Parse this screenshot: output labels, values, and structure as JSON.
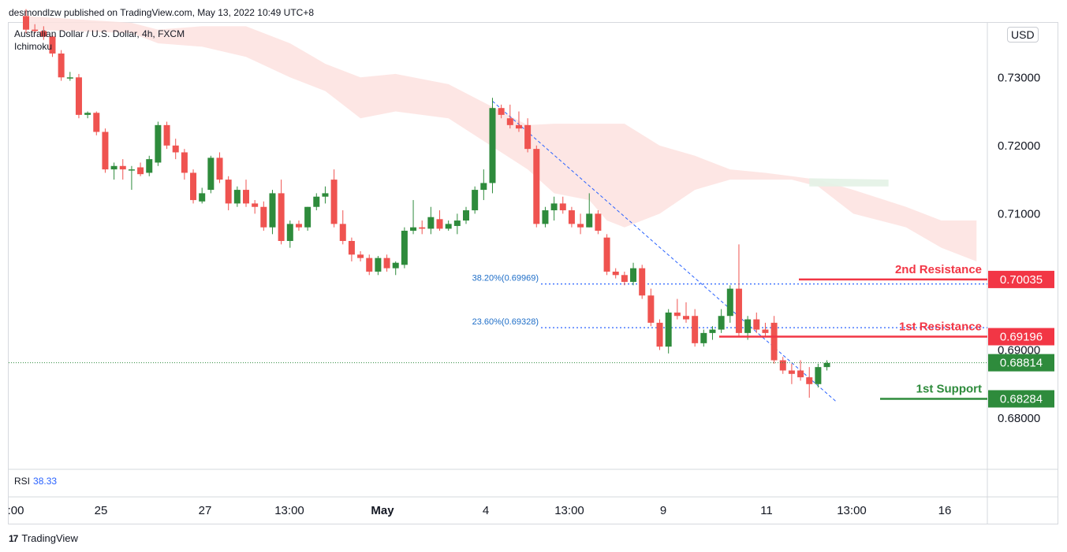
{
  "publisher": "desmondlzw published on TradingView.com, May 13, 2022 10:49 UTC+8",
  "symbol_title": "Australian Dollar / U.S. Dollar, 4h, FXCM",
  "indicator": "Ichimoku",
  "currency_button": "USD",
  "rsi": {
    "label": "RSI",
    "value": "38.33"
  },
  "brand": {
    "name": "TradingView",
    "logo_glyph": "17"
  },
  "colors": {
    "up": "#2e8b3c",
    "down": "#ef5350",
    "resistance": "#f23645",
    "support": "#2e8b3c",
    "fib": "#2962ff",
    "cloud_red": "#fde2df",
    "cloud_green": "#e3f2e5"
  },
  "chart_data": {
    "type": "candlestick",
    "symbol": "AUDUSD",
    "timeframe": "4h",
    "y_axis": {
      "ticks": [
        "0.73000",
        "0.72000",
        "0.71000",
        "0.69000",
        "0.68000"
      ],
      "range": [
        0.6725,
        0.738
      ]
    },
    "x_axis": {
      "ticks": [
        ":00",
        "25",
        "27",
        "13:00",
        "May",
        "4",
        "13:00",
        "9",
        "11",
        "13:00",
        "16"
      ]
    },
    "candles": [
      [
        0.739,
        0.74,
        0.7365,
        0.737
      ],
      [
        0.737,
        0.7378,
        0.7365,
        0.7368
      ],
      [
        0.7368,
        0.7375,
        0.7355,
        0.736
      ],
      [
        0.736,
        0.7362,
        0.733,
        0.7335
      ],
      [
        0.7335,
        0.734,
        0.7295,
        0.73
      ],
      [
        0.73,
        0.7308,
        0.7295,
        0.73
      ],
      [
        0.73,
        0.7305,
        0.724,
        0.7245
      ],
      [
        0.7245,
        0.725,
        0.724,
        0.7248
      ],
      [
        0.7248,
        0.725,
        0.7215,
        0.722
      ],
      [
        0.722,
        0.7225,
        0.716,
        0.7165
      ],
      [
        0.7165,
        0.7175,
        0.715,
        0.717
      ],
      [
        0.717,
        0.718,
        0.715,
        0.7165
      ],
      [
        0.7165,
        0.717,
        0.7135,
        0.7165
      ],
      [
        0.7168,
        0.7175,
        0.7155,
        0.7158
      ],
      [
        0.716,
        0.7185,
        0.7155,
        0.718
      ],
      [
        0.7175,
        0.7235,
        0.717,
        0.723
      ],
      [
        0.723,
        0.7235,
        0.7195,
        0.72
      ],
      [
        0.72,
        0.721,
        0.718,
        0.719
      ],
      [
        0.719,
        0.7195,
        0.715,
        0.716
      ],
      [
        0.716,
        0.7165,
        0.7115,
        0.712
      ],
      [
        0.7118,
        0.7138,
        0.7115,
        0.713
      ],
      [
        0.7135,
        0.7185,
        0.713,
        0.7182
      ],
      [
        0.7182,
        0.719,
        0.7145,
        0.715
      ],
      [
        0.715,
        0.7155,
        0.7105,
        0.7115
      ],
      [
        0.7115,
        0.714,
        0.711,
        0.7135
      ],
      [
        0.7135,
        0.715,
        0.711,
        0.7115
      ],
      [
        0.7115,
        0.712,
        0.71,
        0.711
      ],
      [
        0.711,
        0.7118,
        0.7075,
        0.708
      ],
      [
        0.708,
        0.7135,
        0.707,
        0.713
      ],
      [
        0.713,
        0.715,
        0.7055,
        0.706
      ],
      [
        0.706,
        0.709,
        0.705,
        0.7085
      ],
      [
        0.7085,
        0.709,
        0.7075,
        0.708
      ],
      [
        0.708,
        0.711,
        0.7075,
        0.711
      ],
      [
        0.711,
        0.713,
        0.7105,
        0.7125
      ],
      [
        0.7125,
        0.714,
        0.7115,
        0.713
      ],
      [
        0.715,
        0.7165,
        0.708,
        0.7085
      ],
      [
        0.7085,
        0.7105,
        0.7055,
        0.706
      ],
      [
        0.706,
        0.7065,
        0.703,
        0.704
      ],
      [
        0.704,
        0.7045,
        0.703,
        0.7035
      ],
      [
        0.7035,
        0.704,
        0.701,
        0.7015
      ],
      [
        0.7015,
        0.7038,
        0.701,
        0.7035
      ],
      [
        0.7035,
        0.704,
        0.7015,
        0.702
      ],
      [
        0.702,
        0.703,
        0.701,
        0.7028
      ],
      [
        0.7025,
        0.708,
        0.702,
        0.7075
      ],
      [
        0.7075,
        0.712,
        0.707,
        0.708
      ],
      [
        0.708,
        0.709,
        0.707,
        0.7078
      ],
      [
        0.7078,
        0.711,
        0.707,
        0.7095
      ],
      [
        0.7092,
        0.7105,
        0.7075,
        0.7078
      ],
      [
        0.7078,
        0.709,
        0.7075,
        0.7085
      ],
      [
        0.7082,
        0.71,
        0.707,
        0.709
      ],
      [
        0.709,
        0.711,
        0.7085,
        0.7105
      ],
      [
        0.7105,
        0.714,
        0.71,
        0.7135
      ],
      [
        0.7135,
        0.7165,
        0.712,
        0.7145
      ],
      [
        0.7145,
        0.727,
        0.713,
        0.7255
      ],
      [
        0.7255,
        0.726,
        0.724,
        0.7245
      ],
      [
        0.724,
        0.726,
        0.7225,
        0.723
      ],
      [
        0.723,
        0.725,
        0.722,
        0.7225
      ],
      [
        0.723,
        0.724,
        0.719,
        0.7195
      ],
      [
        0.7195,
        0.72,
        0.708,
        0.7085
      ],
      [
        0.7085,
        0.711,
        0.708,
        0.7105
      ],
      [
        0.7105,
        0.7125,
        0.709,
        0.7115
      ],
      [
        0.7115,
        0.7125,
        0.71,
        0.7105
      ],
      [
        0.7105,
        0.711,
        0.708,
        0.7085
      ],
      [
        0.7085,
        0.71,
        0.707,
        0.708
      ],
      [
        0.708,
        0.713,
        0.708,
        0.71
      ],
      [
        0.71,
        0.7105,
        0.707,
        0.7075
      ],
      [
        0.7065,
        0.707,
        0.701,
        0.7015
      ],
      [
        0.7015,
        0.702,
        0.7005,
        0.701
      ],
      [
        0.701,
        0.7015,
        0.6995,
        0.7
      ],
      [
        0.7,
        0.7028,
        0.6995,
        0.702
      ],
      [
        0.702,
        0.7025,
        0.6975,
        0.698
      ],
      [
        0.698,
        0.699,
        0.6935,
        0.694
      ],
      [
        0.694,
        0.6945,
        0.69,
        0.6905
      ],
      [
        0.6905,
        0.696,
        0.6895,
        0.6955
      ],
      [
        0.6955,
        0.6975,
        0.6945,
        0.695
      ],
      [
        0.695,
        0.697,
        0.694,
        0.6945
      ],
      [
        0.695,
        0.696,
        0.6905,
        0.691
      ],
      [
        0.691,
        0.693,
        0.6905,
        0.6925
      ],
      [
        0.6925,
        0.6935,
        0.6915,
        0.693
      ],
      [
        0.693,
        0.696,
        0.6925,
        0.695
      ],
      [
        0.695,
        0.6995,
        0.694,
        0.699
      ],
      [
        0.699,
        0.7055,
        0.692,
        0.6925
      ],
      [
        0.6925,
        0.695,
        0.6915,
        0.6945
      ],
      [
        0.6945,
        0.6955,
        0.6925,
        0.693
      ],
      [
        0.693,
        0.694,
        0.692,
        0.6925
      ],
      [
        0.694,
        0.695,
        0.688,
        0.6885
      ],
      [
        0.6885,
        0.689,
        0.6865,
        0.687
      ],
      [
        0.687,
        0.688,
        0.685,
        0.6865
      ],
      [
        0.687,
        0.6885,
        0.6855,
        0.686
      ],
      [
        0.686,
        0.6875,
        0.683,
        0.685
      ],
      [
        0.685,
        0.688,
        0.6845,
        0.6875
      ],
      [
        0.6875,
        0.6885,
        0.687,
        0.6881
      ]
    ],
    "cloud_top": [
      [
        0,
        0.739
      ],
      [
        12,
        0.738
      ],
      [
        15,
        0.737
      ],
      [
        20,
        0.7375
      ],
      [
        25,
        0.7375
      ],
      [
        30,
        0.735
      ],
      [
        34,
        0.732
      ],
      [
        38,
        0.73
      ],
      [
        42,
        0.7305
      ],
      [
        48,
        0.729
      ],
      [
        54,
        0.725
      ],
      [
        57,
        0.723
      ],
      [
        60,
        0.7232
      ],
      [
        68,
        0.7232
      ],
      [
        72,
        0.72
      ],
      [
        76,
        0.7185
      ],
      [
        80,
        0.7165
      ],
      [
        84,
        0.716
      ],
      [
        87,
        0.7155
      ],
      [
        90,
        0.715
      ],
      [
        94,
        0.7135
      ],
      [
        100,
        0.711
      ],
      [
        104,
        0.709
      ],
      [
        108,
        0.709
      ]
    ],
    "cloud_bottom": [
      [
        0,
        0.737
      ],
      [
        12,
        0.7365
      ],
      [
        15,
        0.735
      ],
      [
        20,
        0.7345
      ],
      [
        25,
        0.733
      ],
      [
        30,
        0.73
      ],
      [
        34,
        0.728
      ],
      [
        38,
        0.724
      ],
      [
        42,
        0.725
      ],
      [
        48,
        0.724
      ],
      [
        54,
        0.719
      ],
      [
        57,
        0.7165
      ],
      [
        60,
        0.713
      ],
      [
        64,
        0.712
      ],
      [
        66,
        0.709
      ],
      [
        68,
        0.708
      ],
      [
        72,
        0.71
      ],
      [
        76,
        0.7135
      ],
      [
        80,
        0.715
      ],
      [
        84,
        0.715
      ],
      [
        87,
        0.715
      ],
      [
        90,
        0.714
      ],
      [
        94,
        0.71
      ],
      [
        100,
        0.708
      ],
      [
        104,
        0.705
      ],
      [
        108,
        0.703
      ]
    ],
    "levels": [
      {
        "label": "2nd Resistance",
        "price": "0.70035",
        "value": 0.70035,
        "color": "#f23645"
      },
      {
        "label": "1st Resistance",
        "price": "0.69196",
        "value": 0.69196,
        "color": "#f23645"
      },
      {
        "label": "1st Support",
        "price": "0.68284",
        "value": 0.68284,
        "color": "#2e8b3c"
      }
    ],
    "fib_levels": [
      {
        "label": "38.20%(0.69969)",
        "value": 0.69969
      },
      {
        "label": "23.60%(0.69328)",
        "value": 0.69328
      }
    ],
    "current_price": {
      "price": "0.68814",
      "value": 0.68814
    },
    "trendline": [
      [
        53,
        0.7265
      ],
      [
        92,
        0.6825
      ]
    ]
  }
}
